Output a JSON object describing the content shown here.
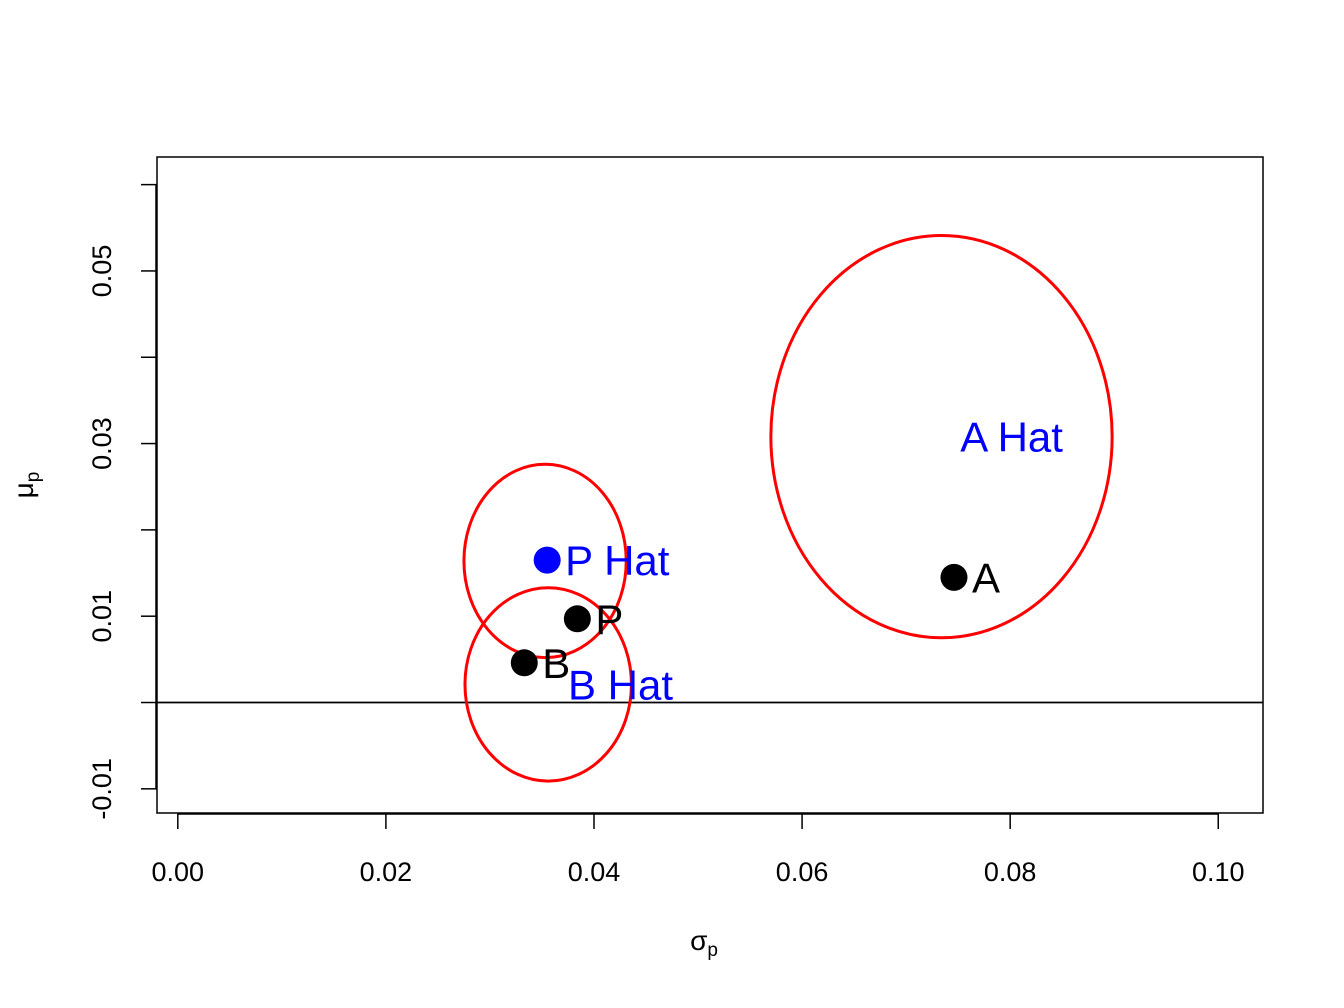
{
  "chart_data": {
    "type": "scatter",
    "xlabel": {
      "base": "σ",
      "sub": "p"
    },
    "ylabel": {
      "base": "μ",
      "sub": "p"
    },
    "xlim": [
      -0.002,
      0.1043
    ],
    "ylim": [
      -0.0128,
      0.0632
    ],
    "x_ticks": [
      {
        "value": 0.0,
        "label": "0.00"
      },
      {
        "value": 0.02,
        "label": "0.02"
      },
      {
        "value": 0.04,
        "label": "0.04"
      },
      {
        "value": 0.06,
        "label": "0.06"
      },
      {
        "value": 0.08,
        "label": "0.08"
      },
      {
        "value": 0.1,
        "label": "0.10"
      }
    ],
    "y_ticks": [
      {
        "value": -0.01,
        "label": "-0.01"
      },
      {
        "value": 0.0,
        "label": ""
      },
      {
        "value": 0.01,
        "label": "0.01"
      },
      {
        "value": 0.02,
        "label": ""
      },
      {
        "value": 0.03,
        "label": "0.03"
      },
      {
        "value": 0.04,
        "label": ""
      },
      {
        "value": 0.05,
        "label": "0.05"
      },
      {
        "value": 0.06,
        "label": ""
      }
    ],
    "hline": {
      "y": 0,
      "color": "#000000"
    },
    "points": [
      {
        "name": "A",
        "label": "A",
        "x": 0.0746,
        "y": 0.0145,
        "color": "#000000"
      },
      {
        "name": "B",
        "label": "B",
        "x": 0.0333,
        "y": 0.0046,
        "color": "#000000"
      },
      {
        "name": "P",
        "label": "P",
        "x": 0.0384,
        "y": 0.0097,
        "color": "#000000"
      },
      {
        "name": "P-hat",
        "label": "P Hat",
        "x": 0.0355,
        "y": 0.0165,
        "color": "#0000ff"
      }
    ],
    "text_labels": [
      {
        "name": "A-hat",
        "label": "A Hat",
        "x": 0.0752,
        "y": 0.0308,
        "color": "#0000ff"
      },
      {
        "name": "B-hat",
        "label": "B Hat",
        "x": 0.0375,
        "y": 0.0021,
        "color": "#0000ff"
      }
    ],
    "ellipses": [
      {
        "name": "A-hat",
        "cx": 0.0734,
        "cy": 0.0308,
        "rx": 0.0164,
        "ry": 0.0233,
        "color": "#ff0000"
      },
      {
        "name": "P-hat",
        "cx": 0.0353,
        "cy": 0.0164,
        "rx": 0.0078,
        "ry": 0.0112,
        "color": "#ff0000"
      },
      {
        "name": "B-hat",
        "cx": 0.0356,
        "cy": 0.0021,
        "rx": 0.008,
        "ry": 0.0112,
        "color": "#ff0000"
      }
    ],
    "grid": false,
    "legend": "none"
  }
}
